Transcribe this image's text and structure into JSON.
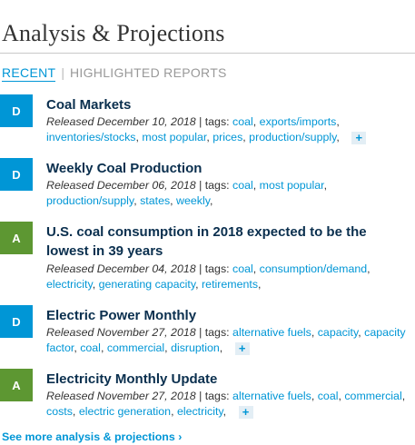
{
  "section_title": "Analysis & Projections",
  "tabs": {
    "recent": "RECENT",
    "separator": "|",
    "highlighted": "HIGHLIGHTED REPORTS"
  },
  "reports": [
    {
      "badge": "D",
      "badge_color": "#0096d6",
      "title": "Coal Markets",
      "released": "Released December 10, 2018",
      "tags_prefix": " | tags: ",
      "tags": [
        "coal",
        "exports/imports",
        "inventories/stocks",
        "most popular",
        "prices",
        "production/supply"
      ],
      "has_more": true
    },
    {
      "badge": "D",
      "badge_color": "#0096d6",
      "title": "Weekly Coal Production",
      "released": "Released December 06, 2018",
      "tags_prefix": " | tags: ",
      "tags": [
        "coal",
        "most popular",
        "production/supply",
        "states",
        "weekly"
      ],
      "has_more": false
    },
    {
      "badge": "A",
      "badge_color": "#5d9732",
      "title": "U.S. coal consumption in 2018 expected to be the lowest in 39 years",
      "released": "Released December 04, 2018",
      "tags_prefix": " | tags: ",
      "tags": [
        "coal",
        "consumption/demand",
        "electricity",
        "generating capacity",
        "retirements"
      ],
      "has_more": false
    },
    {
      "badge": "D",
      "badge_color": "#0096d6",
      "title": "Electric Power Monthly",
      "released": "Released November 27, 2018",
      "tags_prefix": " | tags: ",
      "tags": [
        "alternative fuels",
        "capacity",
        "capacity factor",
        "coal",
        "commercial",
        "disruption"
      ],
      "has_more": true
    },
    {
      "badge": "A",
      "badge_color": "#5d9732",
      "title": "Electricity Monthly Update",
      "released": "Released November 27, 2018",
      "tags_prefix": " | tags: ",
      "tags": [
        "alternative fuels",
        "coal",
        "commercial",
        "costs",
        "electric generation",
        "electricity"
      ],
      "has_more": true
    }
  ],
  "more_label": "+",
  "see_more": "See more analysis & projections ›"
}
